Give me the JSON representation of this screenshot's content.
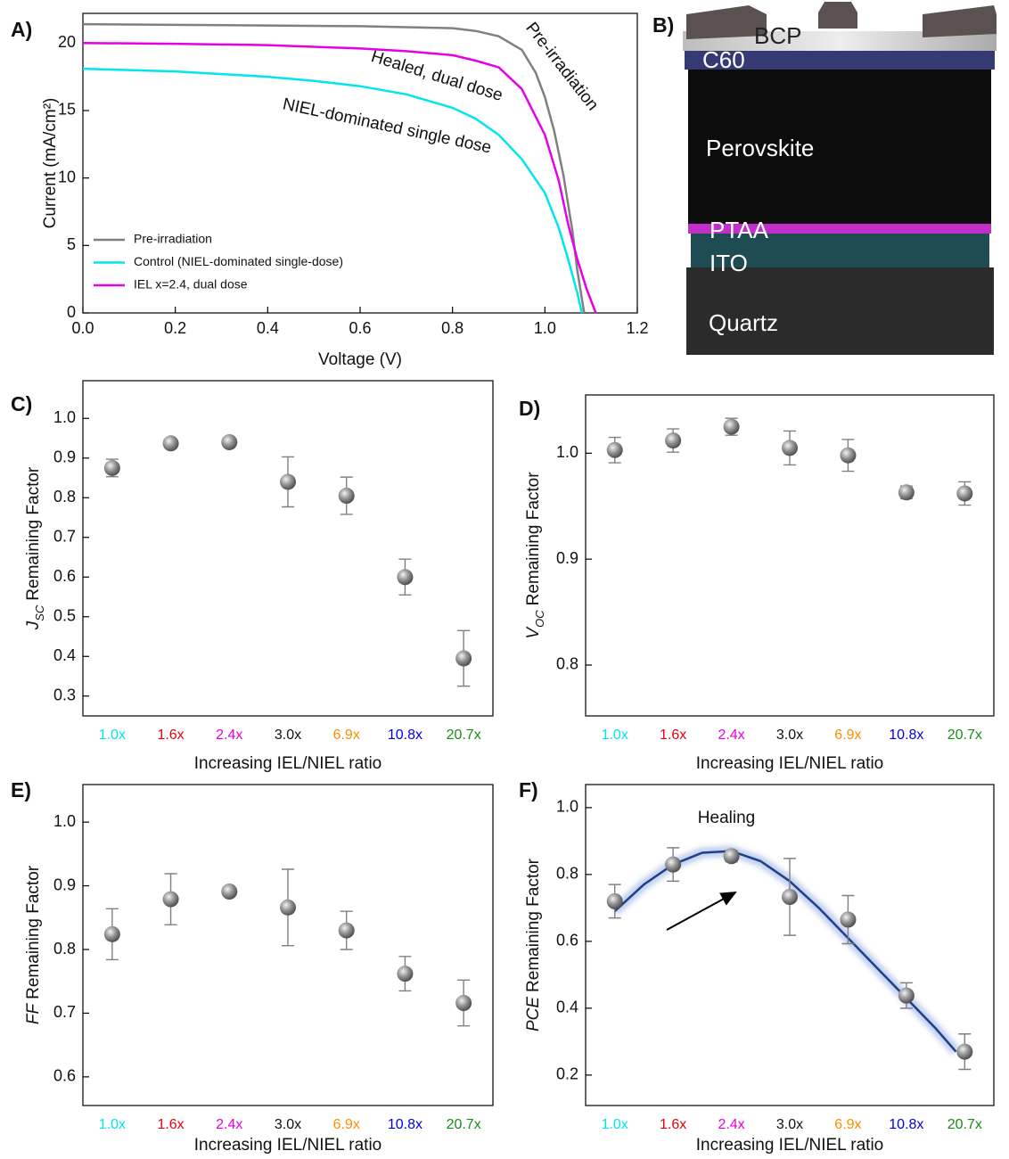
{
  "chart_data": [
    {
      "type": "line",
      "label": "A)",
      "xlabel": "Voltage (V)",
      "ylabel": "Current (mA/cm²)",
      "xlim": [
        0,
        1.2
      ],
      "xticks": [
        {
          "value": 0,
          "label": "0.0"
        },
        0.2,
        0.4,
        0.6,
        0.8,
        {
          "value": 1,
          "label": "1.0"
        },
        1.2
      ],
      "ylim": [
        0,
        22.2
      ],
      "yticks": [
        0,
        5,
        10,
        15,
        20
      ],
      "legend": "lower left",
      "annotations": [
        "Pre-irradiation",
        "Healed, dual dose",
        "NIEL-dominated single dose"
      ],
      "series": [
        {
          "name": "Pre-irradiation",
          "color": "#808080",
          "x": [
            0,
            0.2,
            0.4,
            0.6,
            0.8,
            0.85,
            0.9,
            0.95,
            0.98,
            1.0,
            1.02,
            1.04,
            1.06,
            1.07,
            1.085
          ],
          "values": [
            21.4,
            21.35,
            21.3,
            21.25,
            21.1,
            20.9,
            20.5,
            19.5,
            17.8,
            16.0,
            13.5,
            10.2,
            6.0,
            3.2,
            0
          ]
        },
        {
          "name": "Control (NIEL-dominated single-dose)",
          "color": "#00e5ee",
          "x": [
            0,
            0.2,
            0.4,
            0.5,
            0.6,
            0.7,
            0.8,
            0.85,
            0.9,
            0.95,
            1.0,
            1.03,
            1.05,
            1.07,
            1.08
          ],
          "values": [
            18.1,
            17.9,
            17.5,
            17.2,
            16.8,
            16.2,
            15.2,
            14.4,
            13.2,
            11.4,
            8.9,
            6.3,
            4.0,
            1.5,
            0
          ]
        },
        {
          "name": "IEL x=2.4, dual dose",
          "color": "#e600e6",
          "x": [
            0,
            0.2,
            0.4,
            0.6,
            0.7,
            0.8,
            0.85,
            0.9,
            0.95,
            1.0,
            1.03,
            1.05,
            1.07,
            1.09,
            1.11
          ],
          "values": [
            20.0,
            19.95,
            19.85,
            19.6,
            19.4,
            19.1,
            18.7,
            18.2,
            16.6,
            13.2,
            9.8,
            6.6,
            4.0,
            1.8,
            0
          ]
        }
      ]
    },
    {
      "type": "scatter",
      "label": "C)",
      "xlabel": "Increasing IEL/NIEL ratio",
      "ylabel": {
        "italic": "J",
        "sub": "SC",
        "text": "Remaining Factor"
      },
      "categories": [
        "1.0x",
        "1.6x",
        "2.4x",
        "3.0x",
        "6.9x",
        "10.8x",
        "20.7x"
      ],
      "category_colors": [
        "#00e5ee",
        "#e8000b",
        "#e600e6",
        "#111111",
        "#ff8c00",
        "#0000e0",
        "#1a8a1a"
      ],
      "ylim": [
        0.25,
        1.095
      ],
      "yticks": [
        0.3,
        0.4,
        0.5,
        0.6,
        0.7,
        0.8,
        0.9,
        {
          "value": 1,
          "label": "1.0"
        }
      ],
      "values": [
        0.875,
        0.937,
        0.94,
        0.84,
        0.805,
        0.6,
        0.395
      ],
      "errors": [
        0.022,
        0.01,
        0.006,
        0.063,
        0.047,
        0.045,
        0.07
      ],
      "color": "#808080"
    },
    {
      "type": "scatter",
      "label": "D)",
      "xlabel": "Increasing IEL/NIEL ratio",
      "ylabel": {
        "italic": "V",
        "sub": "OC",
        "text": "Remaining Factor"
      },
      "categories": [
        "1.0x",
        "1.6x",
        "2.4x",
        "3.0x",
        "6.9x",
        "10.8x",
        "20.7x"
      ],
      "category_colors": [
        "#00e5ee",
        "#e8000b",
        "#e600e6",
        "#111111",
        "#ff8c00",
        "#0000e0",
        "#1a8a1a"
      ],
      "ylim": [
        0.752,
        1.055
      ],
      "yticks": [
        0.8,
        0.9,
        {
          "value": 1,
          "label": "1.0"
        }
      ],
      "values": [
        1.003,
        1.012,
        1.025,
        1.005,
        0.998,
        0.963,
        0.962
      ],
      "errors": [
        0.012,
        0.011,
        0.008,
        0.016,
        0.015,
        0.006,
        0.011
      ],
      "color": "#808080"
    },
    {
      "type": "scatter",
      "label": "E)",
      "xlabel": "Increasing IEL/NIEL ratio",
      "ylabel": {
        "italic": "FF",
        "sub": "",
        "text": "Remaining Factor"
      },
      "categories": [
        "1.0x",
        "1.6x",
        "2.4x",
        "3.0x",
        "6.9x",
        "10.8x",
        "20.7x"
      ],
      "category_colors": [
        "#00e5ee",
        "#e8000b",
        "#e600e6",
        "#111111",
        "#ff8c00",
        "#0000e0",
        "#1a8a1a"
      ],
      "ylim": [
        0.555,
        1.059
      ],
      "yticks": [
        0.6,
        0.7,
        0.8,
        0.9,
        {
          "value": 1,
          "label": "1.0"
        }
      ],
      "values": [
        0.824,
        0.879,
        0.891,
        0.866,
        0.83,
        0.762,
        0.716
      ],
      "errors": [
        0.04,
        0.04,
        0.006,
        0.06,
        0.03,
        0.027,
        0.036
      ],
      "color": "#808080"
    },
    {
      "type": "scatter",
      "label": "F)",
      "xlabel": "Increasing IEL/NIEL ratio",
      "ylabel": {
        "italic": "PCE",
        "sub": "",
        "text": "Remaining Factor"
      },
      "categories": [
        "1.0x",
        "1.6x",
        "2.4x",
        "3.0x",
        "6.9x",
        "10.8x",
        "20.7x"
      ],
      "category_colors": [
        "#00e5ee",
        "#e8000b",
        "#e600e6",
        "#111111",
        "#ff8c00",
        "#0000e0",
        "#1a8a1a"
      ],
      "ylim": [
        0.109,
        1.069
      ],
      "yticks": [
        0.2,
        0.4,
        0.6,
        0.8,
        {
          "value": 1,
          "label": "1.0"
        }
      ],
      "values": [
        0.72,
        0.83,
        0.855,
        0.733,
        0.665,
        0.438,
        0.27
      ],
      "errors": [
        0.05,
        0.05,
        0.017,
        0.115,
        0.072,
        0.038,
        0.053
      ],
      "color": "#808080",
      "annotations": [
        "Healing"
      ],
      "fit": {
        "color": "#1f3f8a",
        "x": [
          0,
          0.5,
          1,
          1.5,
          2,
          2.5,
          3,
          3.5,
          4,
          4.5,
          5,
          5.5,
          5.85
        ],
        "values": [
          0.69,
          0.77,
          0.83,
          0.865,
          0.87,
          0.84,
          0.78,
          0.7,
          0.61,
          0.52,
          0.43,
          0.34,
          0.27
        ]
      }
    }
  ],
  "diagram": {
    "label": "B)",
    "layers": [
      "BCP",
      "C60",
      "Perovskite",
      "PTAA",
      "ITO",
      "Quartz"
    ]
  }
}
